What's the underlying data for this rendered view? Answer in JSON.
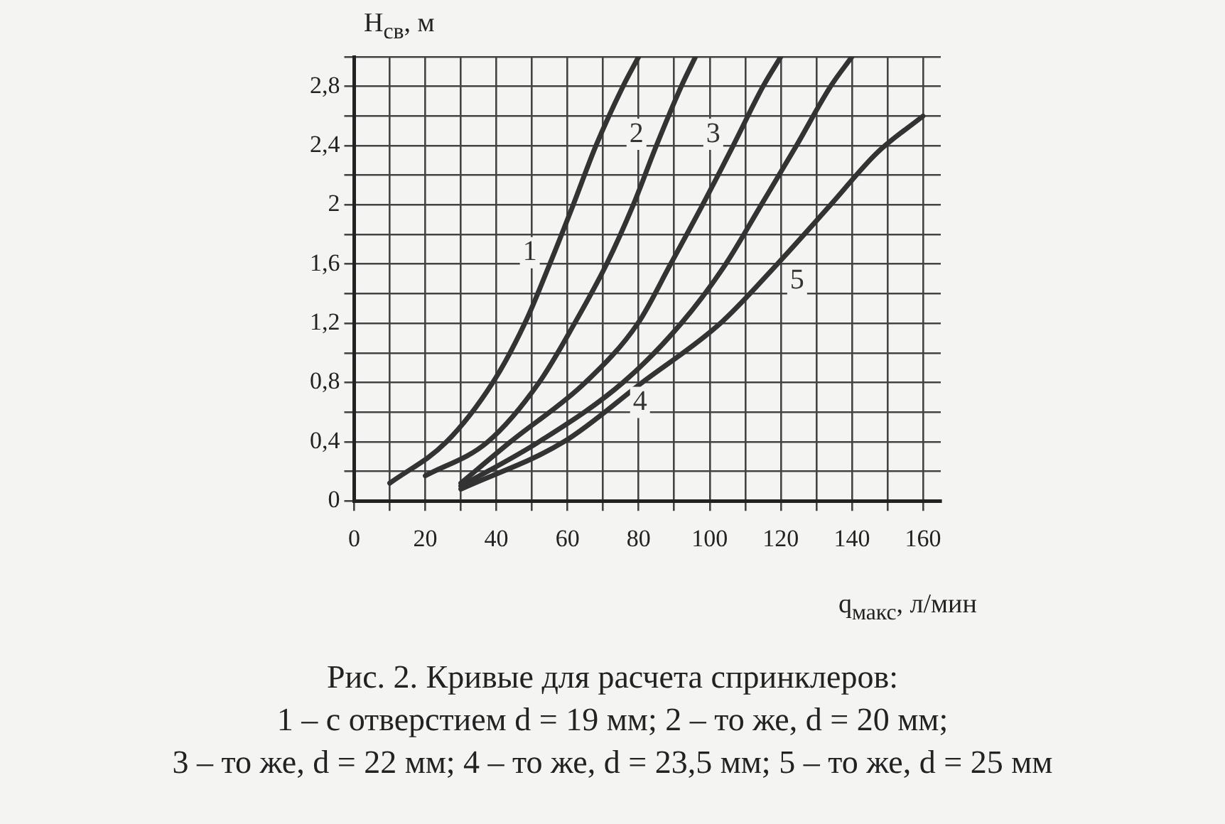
{
  "chart_data": {
    "type": "line",
    "xlabel": "q$_{макс}$, л/мин",
    "ylabel": "H$_{св}$, м",
    "xlim": [
      0,
      165
    ],
    "ylim": [
      0,
      3
    ],
    "xticks": [
      0,
      {
        "value": 10,
        "label": null
      },
      20,
      {
        "value": 30,
        "label": null
      },
      40,
      {
        "value": 50,
        "label": null
      },
      60,
      {
        "value": 70,
        "label": null
      },
      80,
      {
        "value": 90,
        "label": null
      },
      100,
      {
        "value": 110,
        "label": null
      },
      120,
      {
        "value": 130,
        "label": null
      },
      140,
      {
        "value": 150,
        "label": null
      },
      160
    ],
    "yticks": [
      0,
      {
        "value": 0.2,
        "label": null
      },
      {
        "value": 0.4,
        "label": "0,4"
      },
      {
        "value": 0.6,
        "label": null
      },
      {
        "value": 0.8,
        "label": "0,8"
      },
      {
        "value": 1,
        "label": null
      },
      {
        "value": 1.2,
        "label": "1,2"
      },
      {
        "value": 1.4,
        "label": null
      },
      {
        "value": 1.6,
        "label": "1,6"
      },
      {
        "value": 1.8,
        "label": null
      },
      2,
      {
        "value": 2.2,
        "label": null
      },
      {
        "value": 2.4,
        "label": "2,4"
      },
      {
        "value": 2.6,
        "label": null
      },
      {
        "value": 2.8,
        "label": "2,8"
      },
      {
        "value": 3,
        "label": null
      }
    ],
    "grid": true,
    "legend": false,
    "marker": "none",
    "line_style": "solid",
    "series": [
      {
        "name": "1",
        "color": "#333333",
        "x": [
          10,
          26,
          39,
          48,
          55,
          61.6,
          68,
          75.6,
          80
        ],
        "values": [
          0.12,
          0.4,
          0.8,
          1.2,
          1.6,
          2,
          2.4,
          2.8,
          3
        ]
      },
      {
        "name": "2",
        "color": "#333333",
        "x": [
          20,
          37.6,
          52,
          62,
          71,
          78.5,
          85,
          92,
          96
        ],
        "values": [
          0.17,
          0.4,
          0.8,
          1.2,
          1.6,
          2,
          2.4,
          2.8,
          3
        ]
      },
      {
        "name": "3",
        "color": "#333333",
        "x": [
          30,
          44,
          65,
          79.8,
          89,
          98,
          106.6,
          115,
          120
        ],
        "values": [
          0.12,
          0.4,
          0.8,
          1.2,
          1.6,
          2,
          2.4,
          2.8,
          3
        ]
      },
      {
        "name": "4",
        "color": "#333333",
        "x": [
          30,
          52,
          75.6,
          92,
          104.5,
          114.5,
          124.4,
          134,
          140
        ],
        "values": [
          0.1,
          0.4,
          0.8,
          1.2,
          1.6,
          2,
          2.4,
          2.8,
          3
        ]
      },
      {
        "name": "5",
        "color": "#333333",
        "x": [
          30,
          59,
          81,
          103,
          119,
          134,
          147,
          160
        ],
        "values": [
          0.08,
          0.4,
          0.8,
          1.2,
          1.6,
          2,
          2.35,
          2.6
        ]
      }
    ],
    "annotations": [
      "Рис. 2. Кривые для расчета спринклеров:",
      "1 – с отверстием d = 19 мм; 2 – то же, d = 20 мм;",
      "3 – то же, d = 22 мм; 4 – то же, d = 23,5 мм; 5 – то же, d = 25 мм"
    ]
  }
}
